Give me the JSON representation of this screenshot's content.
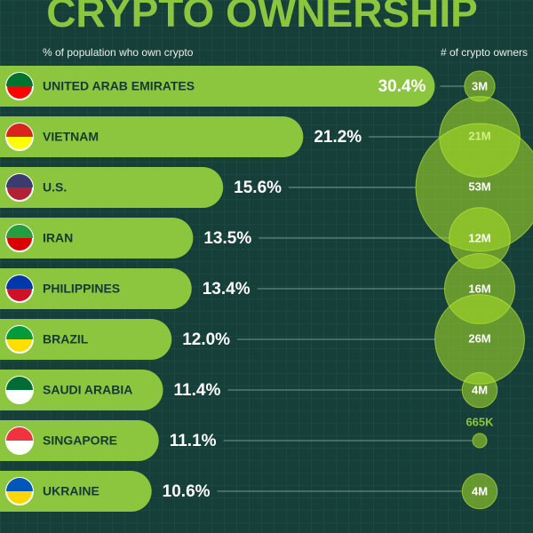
{
  "chart_data": {
    "type": "bar",
    "title": "CRYPTO OWNERSHIP",
    "x_label": "% of population who own crypto",
    "size_label": "# of crypto owners",
    "categories": [
      "UNITED ARAB EMIRATES",
      "VIETNAM",
      "U.S.",
      "IRAN",
      "PHILIPPINES",
      "BRAZIL",
      "SAUDI ARABIA",
      "SINGAPORE",
      "UKRAINE"
    ],
    "values": [
      30.4,
      21.2,
      15.6,
      13.5,
      13.4,
      12.0,
      11.4,
      11.1,
      10.6
    ],
    "value_labels": [
      "30.4%",
      "21.2%",
      "15.6%",
      "13.5%",
      "13.4%",
      "12.0%",
      "11.4%",
      "11.1%",
      "10.6%"
    ],
    "sizes": [
      3000000,
      21000000,
      53000000,
      12000000,
      16000000,
      26000000,
      4000000,
      665000,
      4000000
    ],
    "size_labels": [
      "3M",
      "21M",
      "53M",
      "12M",
      "16M",
      "26M",
      "4M",
      "665K",
      "4M"
    ],
    "color": "#8cc63f"
  }
}
